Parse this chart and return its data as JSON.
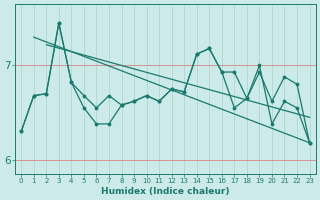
{
  "xlabel": "Humidex (Indice chaleur)",
  "x_values": [
    0,
    1,
    2,
    3,
    4,
    5,
    6,
    7,
    8,
    9,
    10,
    11,
    12,
    13,
    14,
    15,
    16,
    17,
    18,
    19,
    20,
    21,
    22,
    23
  ],
  "line_zigzag": [
    6.3,
    6.68,
    6.7,
    7.45,
    6.82,
    6.68,
    6.55,
    6.68,
    6.58,
    6.62,
    6.68,
    6.62,
    6.75,
    6.72,
    7.12,
    7.18,
    6.93,
    6.93,
    6.65,
    6.93,
    6.62,
    6.88,
    6.8,
    6.18
  ],
  "line_smooth": [
    6.3,
    6.68,
    6.7,
    7.45,
    6.82,
    6.55,
    6.38,
    6.38,
    6.58,
    6.62,
    6.68,
    6.62,
    6.75,
    6.72,
    7.12,
    7.18,
    6.93,
    6.55,
    6.65,
    7.0,
    6.38,
    6.62,
    6.55,
    6.18
  ],
  "trend1_x": [
    1,
    23
  ],
  "trend1_y": [
    7.3,
    6.18
  ],
  "trend2_x": [
    2,
    23
  ],
  "trend2_y": [
    7.22,
    6.45
  ],
  "ylim": [
    5.85,
    7.65
  ],
  "yticks": [
    6,
    7
  ],
  "xlim": [
    -0.5,
    23.5
  ],
  "bg_color": "#cceae8",
  "grid_color": "#aad4d2",
  "line_color": "#1a7a6e",
  "grid_major_color": "#cc6666"
}
